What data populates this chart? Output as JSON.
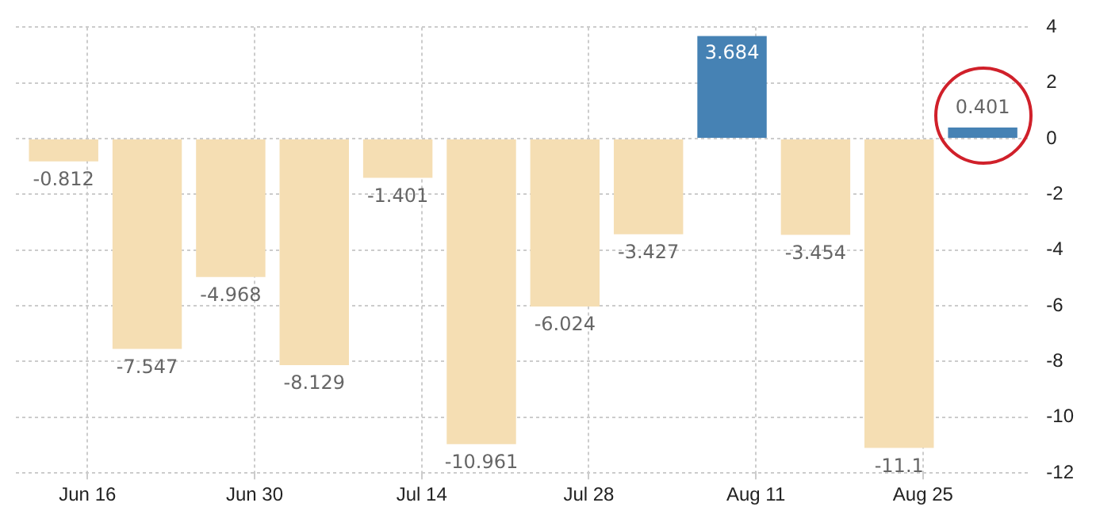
{
  "chart_data": {
    "type": "bar",
    "x": [
      "--06-14",
      "--06-21",
      "--06-28",
      "--07-05",
      "--07-12",
      "--07-19",
      "--07-26",
      "--08-02",
      "--08-09",
      "--08-16",
      "--08-23",
      "--08-30"
    ],
    "values": [
      -0.812,
      -7.547,
      -4.968,
      -8.129,
      -1.401,
      -10.961,
      -6.024,
      -3.427,
      3.684,
      -3.454,
      -11.1,
      0.401
    ],
    "colors": [
      "#f5deb3",
      "#f5deb3",
      "#f5deb3",
      "#f5deb3",
      "#f5deb3",
      "#f5deb3",
      "#f5deb3",
      "#f5deb3",
      "#4682b4",
      "#f5deb3",
      "#f5deb3",
      "#4682b4"
    ],
    "xlim": [
      "--06-10",
      "--09-03"
    ],
    "xticks": [
      {
        "value": "--06-16",
        "label": "Jun 16"
      },
      {
        "value": "--06-30",
        "label": "Jun 30"
      },
      {
        "value": "--07-14",
        "label": "Jul 14"
      },
      {
        "value": "--07-28",
        "label": "Jul 28"
      },
      {
        "value": "--08-11",
        "label": "Aug 11"
      },
      {
        "value": "--08-25",
        "label": "Aug 25"
      }
    ],
    "ylim": [
      -12,
      4
    ],
    "yticks": [
      -12,
      -10,
      -8,
      -6,
      -4,
      -2,
      0,
      2,
      4
    ],
    "grid": true,
    "data_labels": true,
    "legend": false
  }
}
